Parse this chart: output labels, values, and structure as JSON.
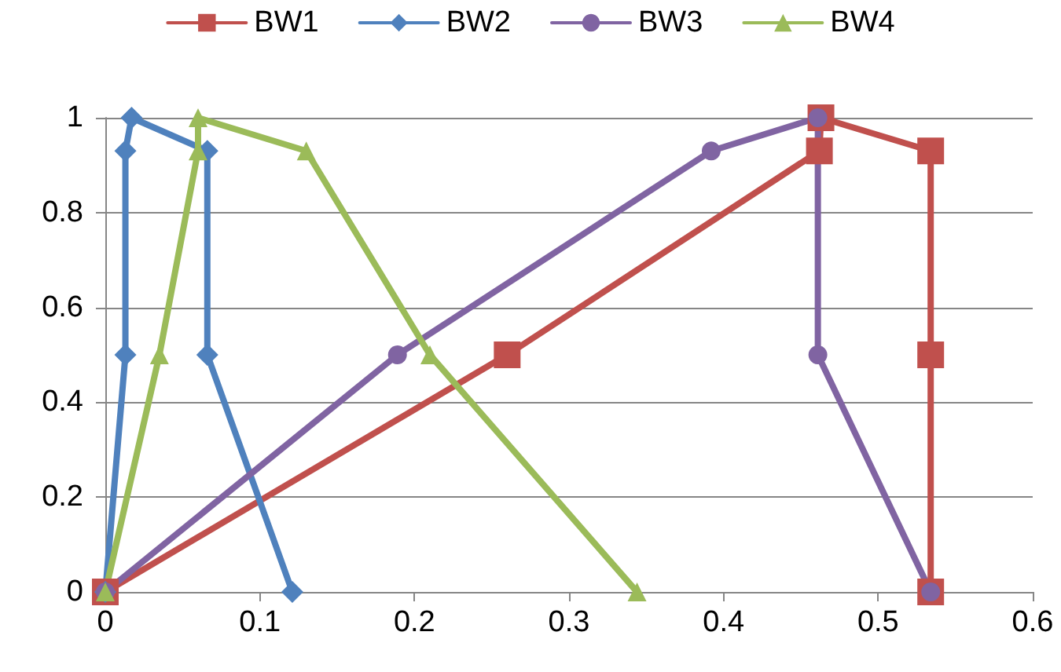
{
  "chart_data": {
    "type": "line",
    "xlim": [
      0,
      0.6
    ],
    "xticks": [
      0,
      0.1,
      0.2,
      0.3,
      0.4,
      0.5,
      0.6
    ],
    "ylim": [
      0,
      1
    ],
    "yticks": [
      0,
      0.2,
      0.4,
      0.6,
      0.8,
      1
    ],
    "grid": "y",
    "legend": "top",
    "series": [
      {
        "name": "BW1",
        "color": "#c0504d",
        "marker": "square",
        "x": [
          0,
          0.26,
          0.462,
          0.463,
          0.534,
          0.534,
          0.534
        ],
        "values": [
          0,
          0.5,
          0.93,
          1,
          0.93,
          0.5,
          0
        ]
      },
      {
        "name": "BW2",
        "color": "#4f81bd",
        "marker": "diamond",
        "x": [
          0,
          0.013,
          0.013,
          0.017,
          0.066,
          0.066,
          0.121
        ],
        "values": [
          0,
          0.5,
          0.93,
          1,
          0.93,
          0.5,
          0
        ]
      },
      {
        "name": "BW3",
        "color": "#8064a2",
        "marker": "circle",
        "x": [
          0,
          0.189,
          0.392,
          0.461,
          0.461,
          0.534
        ],
        "values": [
          0,
          0.5,
          0.93,
          1,
          0.5,
          0
        ]
      },
      {
        "name": "BW4",
        "color": "#9bbb59",
        "marker": "triangle",
        "x": [
          0,
          0.035,
          0.06,
          0.06,
          0.13,
          0.21,
          0.344
        ],
        "values": [
          0,
          0.5,
          0.93,
          1,
          0.93,
          0.5,
          0
        ]
      }
    ]
  }
}
